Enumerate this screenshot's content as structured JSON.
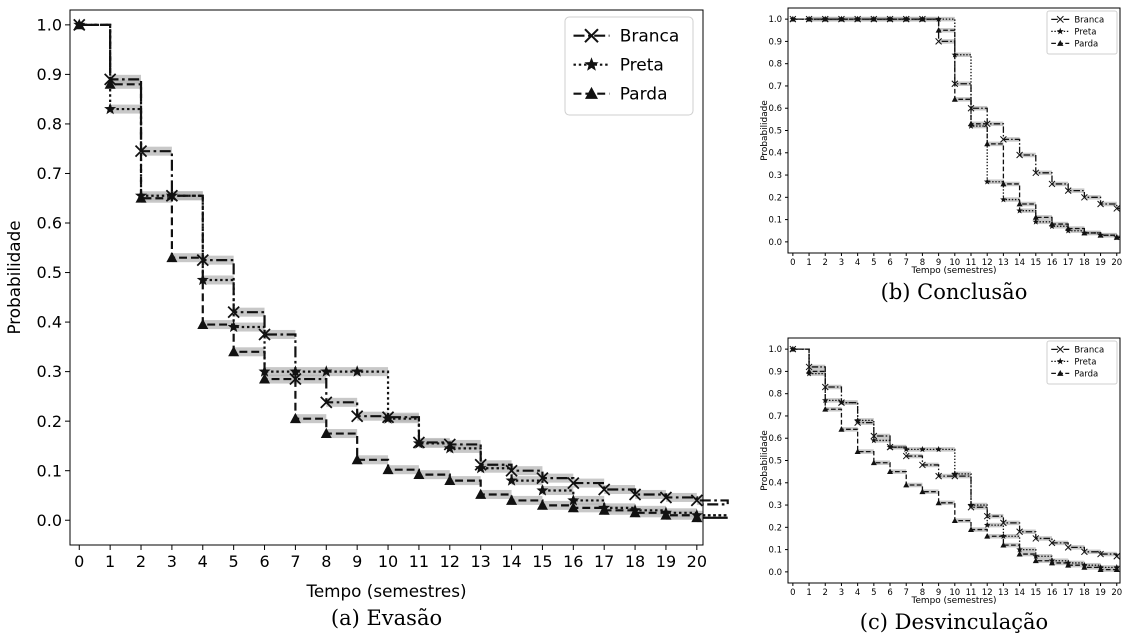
{
  "chart_data": [
    {
      "type": "line",
      "subtype": "step",
      "panel": "a",
      "caption": "(a) Evasão",
      "xlabel": "Tempo (semestres)",
      "ylabel": "Probabilidade",
      "xlim": [
        -0.3,
        20.2
      ],
      "ylim": [
        -0.05,
        1.03
      ],
      "xticks": [
        0,
        1,
        2,
        3,
        4,
        5,
        6,
        7,
        8,
        9,
        10,
        11,
        12,
        13,
        14,
        15,
        16,
        17,
        18,
        19,
        20
      ],
      "yticks": [
        0.0,
        0.1,
        0.2,
        0.3,
        0.4,
        0.5,
        0.6,
        0.7,
        0.8,
        0.9,
        1.0
      ],
      "legend_position": "top-right",
      "grid": false,
      "series": [
        {
          "name": "Branca",
          "marker": "x",
          "dash": "dashdot",
          "values": [
            1.0,
            0.89,
            0.745,
            0.655,
            0.525,
            0.42,
            0.375,
            0.285,
            0.238,
            0.21,
            0.208,
            0.157,
            0.153,
            0.112,
            0.1,
            0.085,
            0.075,
            0.062,
            0.052,
            0.046,
            0.04,
            0.032
          ]
        },
        {
          "name": "Preta",
          "marker": "star",
          "dash": "dotted",
          "values": [
            1.0,
            0.83,
            0.655,
            0.655,
            0.485,
            0.39,
            0.3,
            0.3,
            0.3,
            0.3,
            0.205,
            0.155,
            0.145,
            0.105,
            0.08,
            0.06,
            0.04,
            0.025,
            0.02,
            0.015,
            0.01,
            0.01
          ]
        },
        {
          "name": "Parda",
          "marker": "triangle",
          "dash": "dashed",
          "values": [
            1.0,
            0.88,
            0.65,
            0.53,
            0.395,
            0.34,
            0.285,
            0.205,
            0.175,
            0.122,
            0.102,
            0.092,
            0.08,
            0.052,
            0.04,
            0.03,
            0.025,
            0.02,
            0.015,
            0.01,
            0.005,
            0.005
          ]
        }
      ]
    },
    {
      "type": "line",
      "subtype": "step",
      "panel": "b",
      "caption": "(b) Conclusão",
      "xlabel": "Tempo (semestres)",
      "ylabel": "Probabilidade",
      "xlim": [
        -0.3,
        20.2
      ],
      "ylim": [
        -0.05,
        1.05
      ],
      "xticks": [
        0,
        1,
        2,
        3,
        4,
        5,
        6,
        7,
        8,
        9,
        10,
        11,
        12,
        13,
        14,
        15,
        16,
        17,
        18,
        19,
        20
      ],
      "yticks": [
        0.0,
        0.1,
        0.2,
        0.3,
        0.4,
        0.5,
        0.6,
        0.7,
        0.8,
        0.9,
        1.0
      ],
      "legend_position": "top-right",
      "grid": false,
      "series": [
        {
          "name": "Branca",
          "marker": "x",
          "dash": "dashdot",
          "values": [
            1.0,
            1.0,
            1.0,
            1.0,
            1.0,
            1.0,
            1.0,
            1.0,
            1.0,
            0.9,
            0.71,
            0.6,
            0.53,
            0.46,
            0.39,
            0.31,
            0.26,
            0.23,
            0.2,
            0.17,
            0.15
          ]
        },
        {
          "name": "Preta",
          "marker": "star",
          "dash": "dotted",
          "values": [
            1.0,
            1.0,
            1.0,
            1.0,
            1.0,
            1.0,
            1.0,
            1.0,
            1.0,
            1.0,
            0.84,
            0.52,
            0.27,
            0.19,
            0.14,
            0.09,
            0.07,
            0.05,
            0.04,
            0.03,
            0.02
          ]
        },
        {
          "name": "Parda",
          "marker": "triangle",
          "dash": "dashed",
          "values": [
            1.0,
            1.0,
            1.0,
            1.0,
            1.0,
            1.0,
            1.0,
            1.0,
            1.0,
            0.95,
            0.64,
            0.53,
            0.44,
            0.26,
            0.17,
            0.11,
            0.08,
            0.06,
            0.04,
            0.03,
            0.02
          ]
        }
      ]
    },
    {
      "type": "line",
      "subtype": "step",
      "panel": "c",
      "caption": "(c) Desvinculação",
      "xlabel": "Tempo (semestres)",
      "ylabel": "Probabilidade",
      "xlim": [
        -0.3,
        20.2
      ],
      "ylim": [
        -0.05,
        1.05
      ],
      "xticks": [
        0,
        1,
        2,
        3,
        4,
        5,
        6,
        7,
        8,
        9,
        10,
        11,
        12,
        13,
        14,
        15,
        16,
        17,
        18,
        19,
        20
      ],
      "yticks": [
        0.0,
        0.1,
        0.2,
        0.3,
        0.4,
        0.5,
        0.6,
        0.7,
        0.8,
        0.9,
        1.0
      ],
      "legend_position": "top-right",
      "grid": false,
      "series": [
        {
          "name": "Branca",
          "marker": "x",
          "dash": "dashdot",
          "values": [
            1.0,
            0.92,
            0.83,
            0.76,
            0.67,
            0.61,
            0.56,
            0.52,
            0.48,
            0.43,
            0.43,
            0.29,
            0.25,
            0.22,
            0.18,
            0.15,
            0.13,
            0.11,
            0.09,
            0.08,
            0.07
          ]
        },
        {
          "name": "Preta",
          "marker": "star",
          "dash": "dotted",
          "values": [
            1.0,
            0.89,
            0.77,
            0.76,
            0.68,
            0.59,
            0.56,
            0.55,
            0.55,
            0.55,
            0.44,
            0.3,
            0.21,
            0.16,
            0.1,
            0.07,
            0.05,
            0.04,
            0.03,
            0.02,
            0.02
          ]
        },
        {
          "name": "Parda",
          "marker": "triangle",
          "dash": "dashed",
          "values": [
            1.0,
            0.9,
            0.73,
            0.64,
            0.54,
            0.49,
            0.45,
            0.39,
            0.36,
            0.31,
            0.23,
            0.19,
            0.16,
            0.12,
            0.08,
            0.05,
            0.04,
            0.03,
            0.02,
            0.01,
            0.01
          ]
        }
      ]
    }
  ]
}
